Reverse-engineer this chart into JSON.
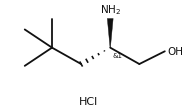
{
  "background": "#ffffff",
  "bond_color": "#111111",
  "text_color": "#111111",
  "bond_lw": 1.3,
  "figsize": [
    1.95,
    1.13
  ],
  "dpi": 100,
  "fs_labels": 7.5,
  "fs_stereo": 5.0,
  "fs_hcl": 8.0,
  "xlim": [
    0,
    10
  ],
  "ylim": [
    0,
    6
  ],
  "C4": [
    2.5,
    3.5
  ],
  "C3": [
    4.1,
    2.6
  ],
  "C2": [
    5.7,
    3.5
  ],
  "C1": [
    7.3,
    2.6
  ],
  "OH": [
    8.7,
    3.3
  ],
  "NH2": [
    5.7,
    5.1
  ],
  "Me1": [
    1.0,
    4.5
  ],
  "Me2": [
    1.0,
    2.5
  ],
  "Me3": [
    2.5,
    5.1
  ],
  "HCl_x": 4.5,
  "HCl_y": 0.55
}
